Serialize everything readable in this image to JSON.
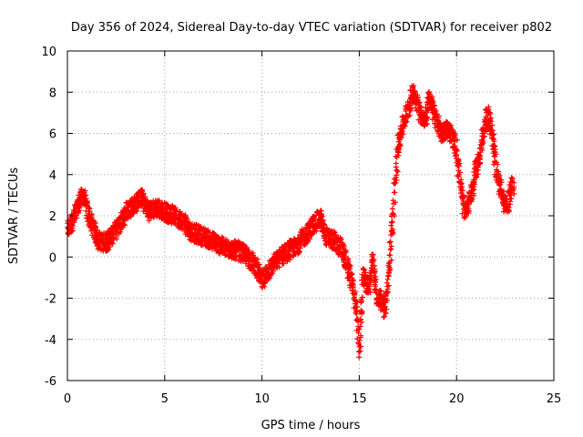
{
  "chart_data": {
    "type": "scatter",
    "title": "Day 356 of 2024, Sidereal Day-to-day VTEC variation (SDTVAR) for receiver p802",
    "xlabel": "GPS time / hours",
    "ylabel": "SDTVAR / TECUs",
    "xlim": [
      0,
      25
    ],
    "ylim": [
      -6,
      10
    ],
    "x_ticks": [
      0,
      5,
      10,
      15,
      20,
      25
    ],
    "y_ticks": [
      -6,
      -4,
      -2,
      0,
      2,
      4,
      6,
      8,
      10
    ],
    "grid": true,
    "marker": "plus",
    "series": [
      {
        "name": "SDTVAR",
        "color": "#ff0000",
        "trend": [
          [
            0.0,
            1.3
          ],
          [
            0.3,
            1.8
          ],
          [
            0.6,
            2.6
          ],
          [
            0.8,
            3.0
          ],
          [
            1.0,
            2.3
          ],
          [
            1.3,
            1.5
          ],
          [
            1.6,
            0.8
          ],
          [
            2.0,
            0.7
          ],
          [
            2.4,
            1.2
          ],
          [
            2.8,
            1.8
          ],
          [
            3.1,
            2.3
          ],
          [
            3.5,
            2.6
          ],
          [
            3.8,
            2.9
          ],
          [
            4.2,
            2.2
          ],
          [
            4.6,
            2.4
          ],
          [
            5.0,
            2.2
          ],
          [
            5.5,
            2.0
          ],
          [
            6.0,
            1.7
          ],
          [
            6.4,
            1.2
          ],
          [
            7.0,
            1.0
          ],
          [
            7.6,
            0.7
          ],
          [
            8.2,
            0.4
          ],
          [
            8.8,
            0.3
          ],
          [
            9.3,
            0.0
          ],
          [
            9.7,
            -0.5
          ],
          [
            10.0,
            -1.2
          ],
          [
            10.3,
            -0.7
          ],
          [
            10.7,
            -0.2
          ],
          [
            11.2,
            0.2
          ],
          [
            11.7,
            0.5
          ],
          [
            12.2,
            1.0
          ],
          [
            12.6,
            1.5
          ],
          [
            13.0,
            1.9
          ],
          [
            13.3,
            1.0
          ],
          [
            13.7,
            0.8
          ],
          [
            14.1,
            0.4
          ],
          [
            14.4,
            -0.5
          ],
          [
            14.7,
            -1.5
          ],
          [
            14.9,
            -3.0
          ],
          [
            15.0,
            -4.6
          ],
          [
            15.2,
            -1.0
          ],
          [
            15.5,
            -1.5
          ],
          [
            15.7,
            0.0
          ],
          [
            15.9,
            -2.0
          ],
          [
            16.1,
            -2.0
          ],
          [
            16.3,
            -2.5
          ],
          [
            16.5,
            -1.0
          ],
          [
            16.7,
            1.5
          ],
          [
            16.85,
            3.5
          ],
          [
            17.0,
            5.5
          ],
          [
            17.2,
            6.3
          ],
          [
            17.5,
            7.2
          ],
          [
            17.8,
            8.1
          ],
          [
            18.1,
            7.1
          ],
          [
            18.4,
            6.5
          ],
          [
            18.6,
            7.8
          ],
          [
            18.9,
            6.8
          ],
          [
            19.2,
            6.0
          ],
          [
            19.5,
            6.2
          ],
          [
            19.8,
            5.8
          ],
          [
            20.0,
            5.2
          ],
          [
            20.2,
            3.5
          ],
          [
            20.4,
            2.2
          ],
          [
            20.6,
            2.6
          ],
          [
            20.8,
            3.2
          ],
          [
            21.0,
            4.2
          ],
          [
            21.2,
            5.0
          ],
          [
            21.4,
            6.0
          ],
          [
            21.6,
            7.0
          ],
          [
            21.8,
            6.2
          ],
          [
            22.0,
            4.5
          ],
          [
            22.2,
            3.6
          ],
          [
            22.4,
            2.8
          ],
          [
            22.6,
            2.4
          ],
          [
            22.8,
            3.2
          ],
          [
            22.95,
            3.6
          ]
        ]
      }
    ]
  }
}
